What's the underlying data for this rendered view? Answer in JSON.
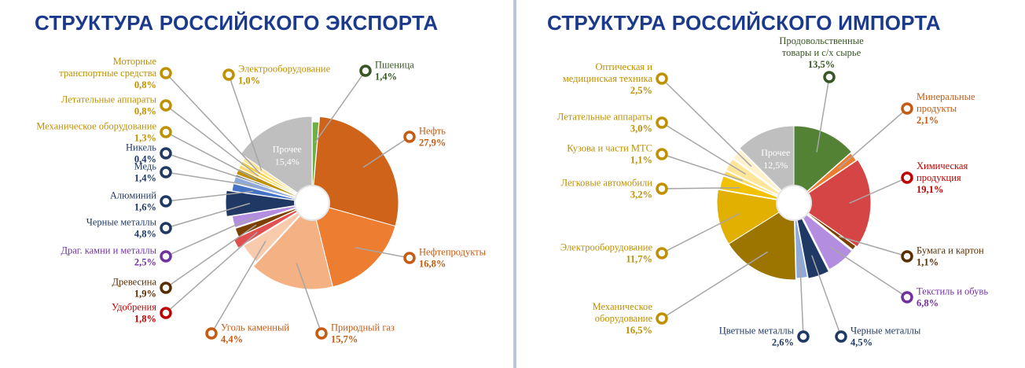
{
  "export": {
    "title": "СТРУКТУРА РОССИЙСКОГО ЭКСПОРТА"
  },
  "import": {
    "title": "СТРУКТУРА РОССИЙСКОГО ИМПОРТА"
  },
  "chart_data": [
    {
      "type": "pie",
      "title": "СТРУКТУРА РОССИЙСКОГО ЭКСПОРТА",
      "slices": [
        {
          "name": "Пшеница",
          "value_label": "1,4%",
          "value": 1.4,
          "color": "#70ad47",
          "label_color": "#375623",
          "exploded": true
        },
        {
          "name": "Нефть",
          "value_label": "27,9%",
          "value": 27.9,
          "color": "#d0631a",
          "label_color": "#c55a11",
          "exploded": false
        },
        {
          "name": "Нефтепродукты",
          "value_label": "16,8%",
          "value": 16.8,
          "color": "#ed7d31",
          "label_color": "#c55a11",
          "exploded": false
        },
        {
          "name": "Природный газ",
          "value_label": "15,7%",
          "value": 15.7,
          "color": "#f4b183",
          "label_color": "#c55a11",
          "exploded": false
        },
        {
          "name": "Уголь каменный",
          "value_label": "4,4%",
          "value": 4.4,
          "color": "#f8cbad",
          "label_color": "#c55a11",
          "exploded": true
        },
        {
          "name": "Удобрения",
          "value_label": "1,8%",
          "value": 1.8,
          "color": "#e05050",
          "label_color": "#c00000",
          "exploded": false
        },
        {
          "name": "Древесина",
          "value_label": "1,9%",
          "value": 1.9,
          "color": "#7b3f00",
          "label_color": "#5a2d00",
          "exploded": true
        },
        {
          "name": "Драг. камни и металлы",
          "value_label": "2,5%",
          "value": 2.5,
          "color": "#b38ee0",
          "label_color": "#7030a0",
          "exploded": true
        },
        {
          "name": "Черные металлы",
          "value_label": "4,8%",
          "value": 4.8,
          "color": "#203864",
          "label_color": "#203864",
          "exploded": false
        },
        {
          "name": "Алюминий",
          "value_label": "1,6%",
          "value": 1.6,
          "color": "#4472c4",
          "label_color": "#203864",
          "exploded": true
        },
        {
          "name": "Медь",
          "value_label": "1,4%",
          "value": 1.4,
          "color": "#8eaadb",
          "label_color": "#203864",
          "exploded": true
        },
        {
          "name": "Никель",
          "value_label": "0,4%",
          "value": 0.4,
          "color": "#1f3864",
          "label_color": "#203864",
          "exploded": true
        },
        {
          "name": "Механическое оборудование",
          "value_label": "1,3%",
          "value": 1.3,
          "color": "#bf9000",
          "label_color": "#bf9000",
          "exploded": true
        },
        {
          "name": "Летательные аппараты",
          "value_label": "0,8%",
          "value": 0.8,
          "color": "#ffd966",
          "label_color": "#bf9000",
          "exploded": true
        },
        {
          "name": "Моторные транспортные средства",
          "value_label": "0,8%",
          "value": 0.8,
          "color": "#f4d03f",
          "label_color": "#bf9000",
          "exploded": true
        },
        {
          "name": "Электрооборудование",
          "value_label": "1,0%",
          "value": 1.0,
          "color": "#ffe699",
          "label_color": "#bf9000",
          "exploded": true
        },
        {
          "name": "Прочее",
          "value_label": "15,4%",
          "value": 15.4,
          "color": "#bfbfbf",
          "label_color": "#ffffff",
          "exploded": false
        }
      ]
    },
    {
      "type": "pie",
      "title": "СТРУКТУРА РОССИЙСКОГО ИМПОРТА",
      "slices": [
        {
          "name": "Продовольственные товары и с/х сырье",
          "value_label": "13,5%",
          "value": 13.5,
          "color": "#548235",
          "label_color": "#375623",
          "exploded": false
        },
        {
          "name": "Минеральные продукты",
          "value_label": "2,1%",
          "value": 2.1,
          "color": "#ed7d31",
          "label_color": "#c55a11",
          "exploded": true
        },
        {
          "name": "Химическая продукция",
          "value_label": "19,1%",
          "value": 19.1,
          "color": "#d64545",
          "label_color": "#c00000",
          "exploded": false
        },
        {
          "name": "Бумага и картон",
          "value_label": "1,1%",
          "value": 1.1,
          "color": "#7b3f00",
          "label_color": "#5a2d00",
          "exploded": true
        },
        {
          "name": "Текстиль и обувь",
          "value_label": "6,8%",
          "value": 6.8,
          "color": "#b38ee0",
          "label_color": "#7030a0",
          "exploded": true
        },
        {
          "name": "Черные металлы",
          "value_label": "4,5%",
          "value": 4.5,
          "color": "#203864",
          "label_color": "#203864",
          "exploded": false
        },
        {
          "name": "Цветные металлы",
          "value_label": "2,6%",
          "value": 2.6,
          "color": "#8eaadb",
          "label_color": "#203864",
          "exploded": true
        },
        {
          "name": "Механическое оборудование",
          "value_label": "16,5%",
          "value": 16.5,
          "color": "#9c7400",
          "label_color": "#bf9000",
          "exploded": false
        },
        {
          "name": "Электрооборудование",
          "value_label": "11,7%",
          "value": 11.7,
          "color": "#e1b000",
          "label_color": "#bf9000",
          "exploded": false
        },
        {
          "name": "Легковые автомобили",
          "value_label": "3,2%",
          "value": 3.2,
          "color": "#f2c200",
          "label_color": "#bf9000",
          "exploded": true
        },
        {
          "name": "Кузова и части МТС",
          "value_label": "1,1%",
          "value": 1.1,
          "color": "#ffd966",
          "label_color": "#bf9000",
          "exploded": true
        },
        {
          "name": "Летательные аппараты",
          "value_label": "3,0%",
          "value": 3.0,
          "color": "#ffe699",
          "label_color": "#bf9000",
          "exploded": true
        },
        {
          "name": "Оптическая и медицинская техника",
          "value_label": "2,5%",
          "value": 2.5,
          "color": "#fff2cc",
          "label_color": "#bf9000",
          "exploded": true
        },
        {
          "name": "Прочее",
          "value_label": "12,5%",
          "value": 12.5,
          "color": "#bfbfbf",
          "label_color": "#ffffff",
          "exploded": false
        }
      ]
    }
  ]
}
